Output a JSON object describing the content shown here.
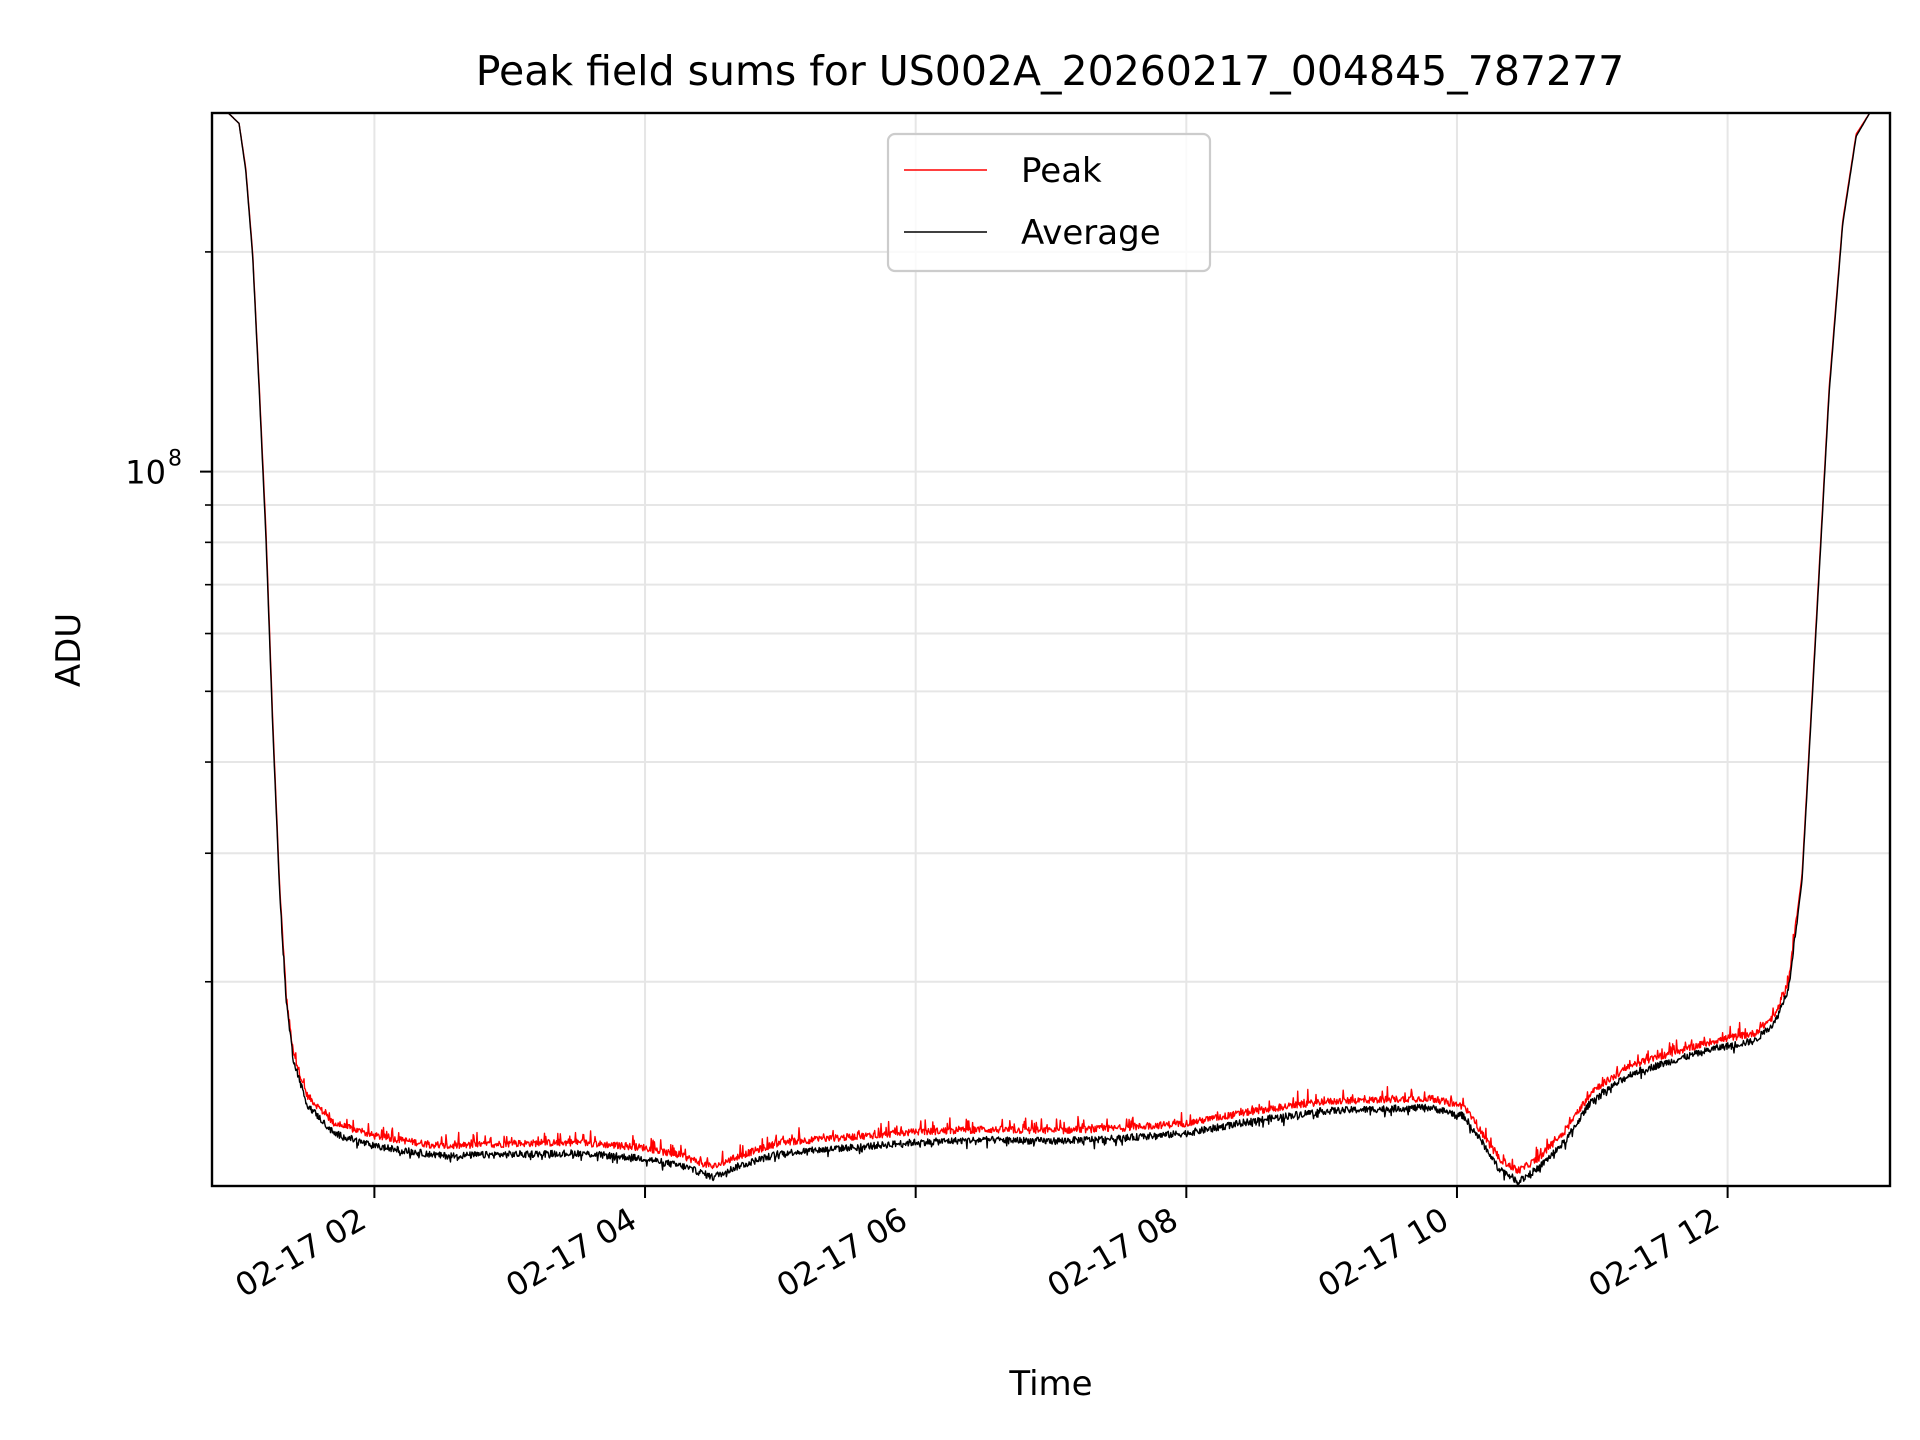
{
  "chart_data": {
    "type": "line",
    "title": "Peak field sums for US002A_20260217_004845_787277",
    "xlabel": "Time",
    "ylabel": "ADU",
    "yscale": "log",
    "x_unit": "hours",
    "x_range": [
      0.8,
      13.2
    ],
    "y_range": [
      10500000,
      310000000
    ],
    "x_ticks": [
      {
        "value": 2,
        "label": "02-17 02"
      },
      {
        "value": 4,
        "label": "02-17 04"
      },
      {
        "value": 6,
        "label": "02-17 06"
      },
      {
        "value": 8,
        "label": "02-17 08"
      },
      {
        "value": 10,
        "label": "02-17 10"
      },
      {
        "value": 12,
        "label": "02-17 12"
      }
    ],
    "y_major_ticks": [
      {
        "value": 100000000,
        "base": "10",
        "exp": "8"
      }
    ],
    "y_minor_ticks": [
      20000000,
      30000000,
      40000000,
      50000000,
      60000000,
      70000000,
      80000000,
      90000000,
      200000000
    ],
    "grid": true,
    "legend": {
      "position": "top-center",
      "entries": [
        {
          "label": "Peak",
          "color": "#ff0000"
        },
        {
          "label": "Average",
          "color": "#000000"
        }
      ]
    },
    "series": [
      {
        "name": "Peak",
        "color": "#ff0000",
        "noise_spike": 0.035,
        "points": [
          [
            0.92,
            310000000
          ],
          [
            1.0,
            300000000
          ],
          [
            1.05,
            260000000
          ],
          [
            1.1,
            200000000
          ],
          [
            1.15,
            130000000
          ],
          [
            1.2,
            82000000
          ],
          [
            1.25,
            45000000
          ],
          [
            1.3,
            27000000
          ],
          [
            1.35,
            19000000
          ],
          [
            1.4,
            16000000
          ],
          [
            1.5,
            14000000
          ],
          [
            1.7,
            12800000
          ],
          [
            2.0,
            12300000
          ],
          [
            2.5,
            11900000
          ],
          [
            3.0,
            12000000
          ],
          [
            3.5,
            12050000
          ],
          [
            4.0,
            11850000
          ],
          [
            4.3,
            11500000
          ],
          [
            4.5,
            11150000
          ],
          [
            4.7,
            11550000
          ],
          [
            5.0,
            12050000
          ],
          [
            5.5,
            12250000
          ],
          [
            6.0,
            12450000
          ],
          [
            6.5,
            12550000
          ],
          [
            7.0,
            12500000
          ],
          [
            7.5,
            12600000
          ],
          [
            8.0,
            12800000
          ],
          [
            8.5,
            13300000
          ],
          [
            9.0,
            13700000
          ],
          [
            9.5,
            13800000
          ],
          [
            9.8,
            13850000
          ],
          [
            10.05,
            13500000
          ],
          [
            10.2,
            12300000
          ],
          [
            10.3,
            11500000
          ],
          [
            10.45,
            11000000
          ],
          [
            10.6,
            11450000
          ],
          [
            10.8,
            12500000
          ],
          [
            11.0,
            14200000
          ],
          [
            11.3,
            15400000
          ],
          [
            11.6,
            16000000
          ],
          [
            11.9,
            16600000
          ],
          [
            12.2,
            17000000
          ],
          [
            12.35,
            18000000
          ],
          [
            12.45,
            20000000
          ],
          [
            12.55,
            28000000
          ],
          [
            12.65,
            60000000
          ],
          [
            12.75,
            130000000
          ],
          [
            12.85,
            220000000
          ],
          [
            12.95,
            290000000
          ],
          [
            13.05,
            310000000
          ]
        ]
      },
      {
        "name": "Average",
        "color": "#000000",
        "noise_spike": 0.0,
        "points": [
          [
            0.92,
            310000000
          ],
          [
            1.0,
            300000000
          ],
          [
            1.05,
            258000000
          ],
          [
            1.1,
            198000000
          ],
          [
            1.15,
            128000000
          ],
          [
            1.2,
            80000000
          ],
          [
            1.25,
            44000000
          ],
          [
            1.3,
            26500000
          ],
          [
            1.35,
            18700000
          ],
          [
            1.4,
            15700000
          ],
          [
            1.5,
            13600000
          ],
          [
            1.7,
            12400000
          ],
          [
            2.0,
            11900000
          ],
          [
            2.5,
            11550000
          ],
          [
            3.0,
            11600000
          ],
          [
            3.5,
            11650000
          ],
          [
            4.0,
            11450000
          ],
          [
            4.3,
            11150000
          ],
          [
            4.5,
            10800000
          ],
          [
            4.7,
            11200000
          ],
          [
            5.0,
            11650000
          ],
          [
            5.5,
            11850000
          ],
          [
            6.0,
            12050000
          ],
          [
            6.5,
            12150000
          ],
          [
            7.0,
            12100000
          ],
          [
            7.5,
            12200000
          ],
          [
            8.0,
            12400000
          ],
          [
            8.5,
            12900000
          ],
          [
            9.0,
            13300000
          ],
          [
            9.5,
            13400000
          ],
          [
            9.8,
            13450000
          ],
          [
            10.05,
            13100000
          ],
          [
            10.2,
            11950000
          ],
          [
            10.3,
            11150000
          ],
          [
            10.45,
            10650000
          ],
          [
            10.6,
            11100000
          ],
          [
            10.8,
            12100000
          ],
          [
            11.0,
            13800000
          ],
          [
            11.3,
            15000000
          ],
          [
            11.6,
            15600000
          ],
          [
            11.9,
            16200000
          ],
          [
            12.2,
            16600000
          ],
          [
            12.35,
            17600000
          ],
          [
            12.45,
            19600000
          ],
          [
            12.55,
            27500000
          ],
          [
            12.65,
            59000000
          ],
          [
            12.75,
            128000000
          ],
          [
            12.85,
            218000000
          ],
          [
            12.95,
            288000000
          ],
          [
            13.05,
            310000000
          ]
        ]
      }
    ]
  }
}
